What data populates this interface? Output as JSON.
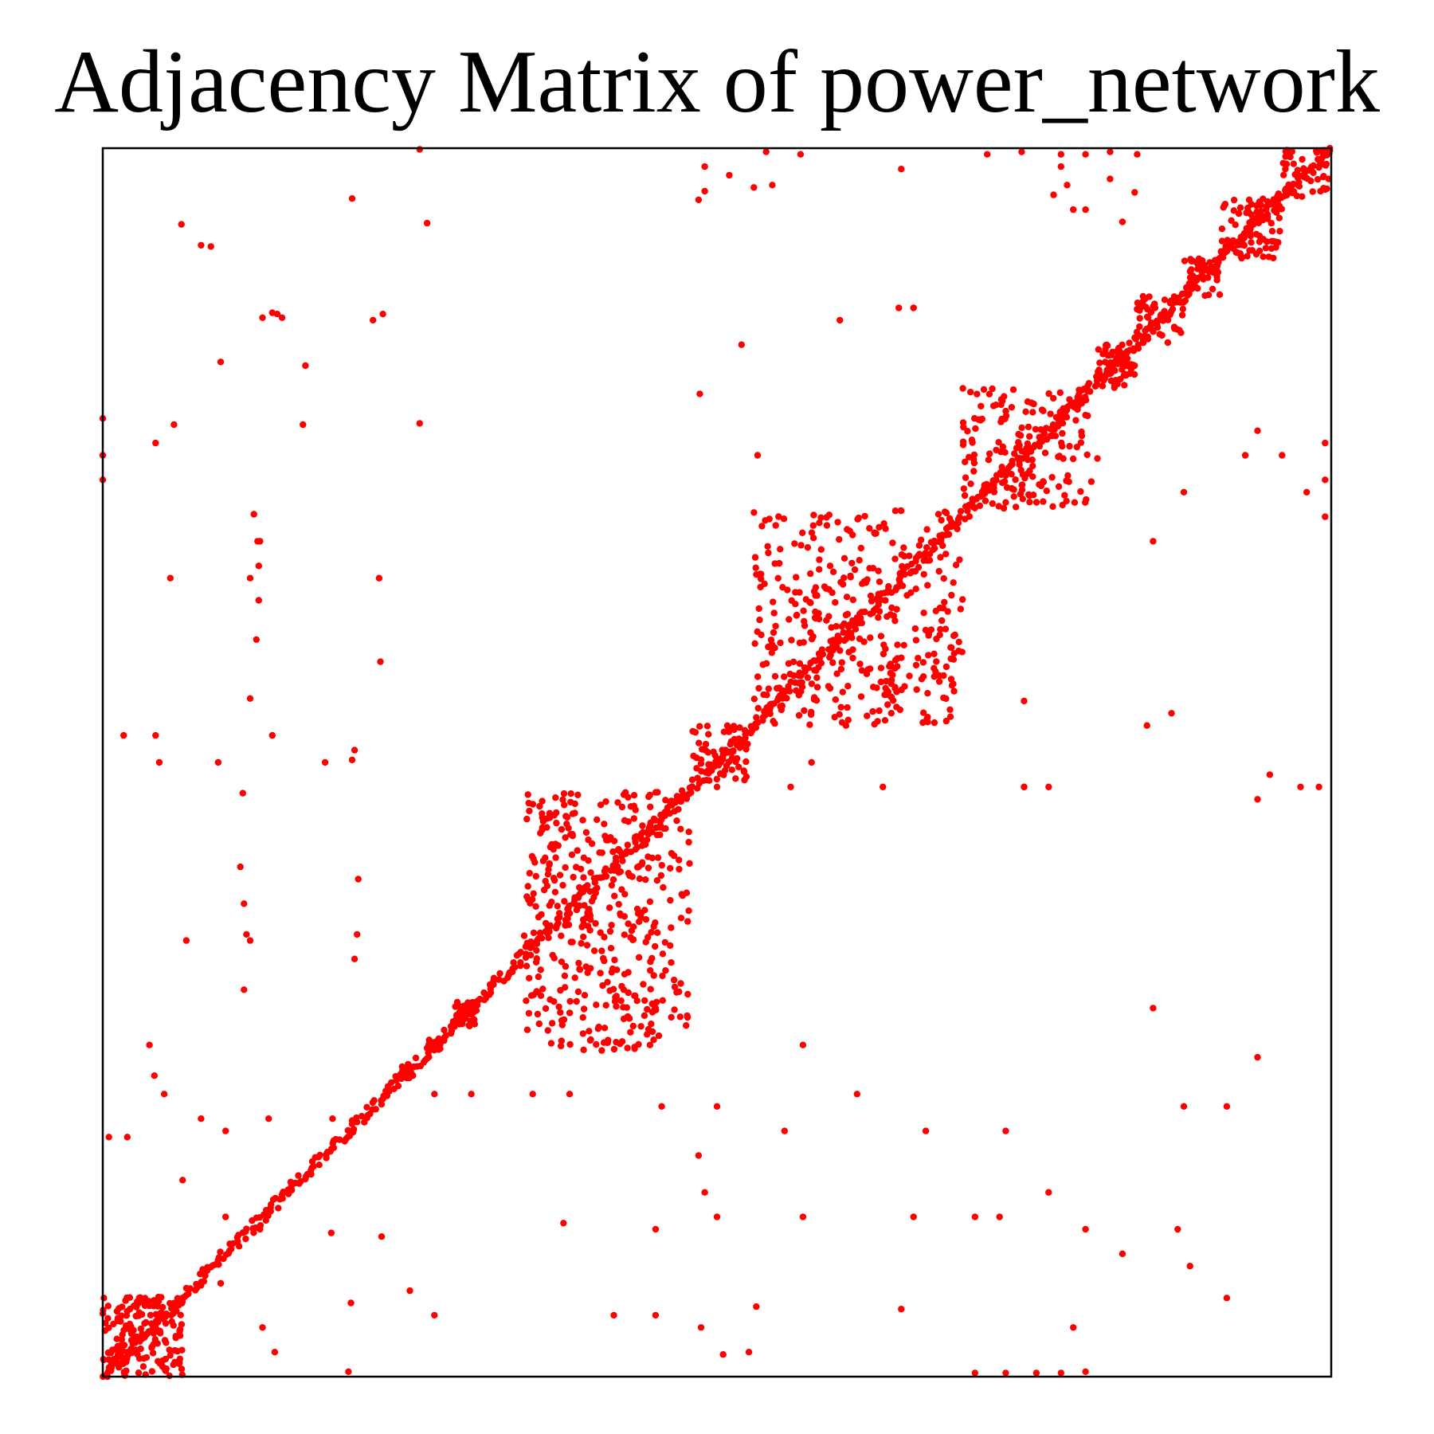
{
  "chart_data": {
    "type": "scatter",
    "title": "Adjacency Matrix of power_network",
    "xlabel": "",
    "ylabel": "",
    "axes_ticks": false,
    "grid": false,
    "legend": "none",
    "marker_color": "#ff0000",
    "axis_color": "#000000",
    "xlim": [
      0,
      1
    ],
    "ylim": [
      0,
      1
    ],
    "series": [
      {
        "blocks": [
          {
            "x": [
              0.0,
              0.065
            ],
            "y": [
              0.0,
              0.065
            ],
            "count": 160
          },
          {
            "x": [
              0.243,
              0.253
            ],
            "y": [
              0.243,
              0.253
            ],
            "count": 30
          },
          {
            "x": [
              0.265,
              0.275
            ],
            "y": [
              0.265,
              0.275
            ],
            "count": 25
          },
          {
            "x": [
              0.285,
              0.305
            ],
            "y": [
              0.285,
              0.305
            ],
            "count": 35
          },
          {
            "x": [
              0.343,
              0.478
            ],
            "y": [
              0.265,
              0.476
            ],
            "count": 420
          },
          {
            "x": [
              0.48,
              0.525
            ],
            "y": [
              0.485,
              0.53
            ],
            "count": 60
          },
          {
            "x": [
              0.53,
              0.7
            ],
            "y": [
              0.53,
              0.705
            ],
            "count": 380
          },
          {
            "x": [
              0.7,
              0.81
            ],
            "y": [
              0.705,
              0.805
            ],
            "count": 180
          },
          {
            "x": [
              0.81,
              0.84
            ],
            "y": [
              0.805,
              0.84
            ],
            "count": 60
          },
          {
            "x": [
              0.84,
              0.88
            ],
            "y": [
              0.84,
              0.88
            ],
            "count": 50
          },
          {
            "x": [
              0.88,
              0.91
            ],
            "y": [
              0.88,
              0.91
            ],
            "count": 40
          },
          {
            "x": [
              0.91,
              0.96
            ],
            "y": [
              0.91,
              0.96
            ],
            "count": 80
          },
          {
            "x": [
              0.96,
              1.0
            ],
            "y": [
              0.96,
              1.0
            ],
            "count": 45
          }
        ],
        "offdiag": [
          [
            0.258,
            0.999
          ],
          [
            0.203,
            0.959
          ],
          [
            0.264,
            0.939
          ],
          [
            0.064,
            0.938
          ],
          [
            0.08,
            0.921
          ],
          [
            0.088,
            0.92
          ],
          [
            0.13,
            0.862
          ],
          [
            0.138,
            0.866
          ],
          [
            0.22,
            0.86
          ],
          [
            0.228,
            0.865
          ],
          [
            0.146,
            0.862
          ],
          [
            0.142,
            0.865
          ],
          [
            0.096,
            0.826
          ],
          [
            0.165,
            0.823
          ],
          [
            0.058,
            0.775
          ],
          [
            0.163,
            0.775
          ],
          [
            0.258,
            0.776
          ],
          [
            0.0,
            0.73
          ],
          [
            0.0,
            0.75
          ],
          [
            0.0,
            0.78
          ],
          [
            0.043,
            0.76
          ],
          [
            0.128,
            0.68
          ],
          [
            0.055,
            0.65
          ],
          [
            0.225,
            0.65
          ],
          [
            0.226,
            0.582
          ],
          [
            0.123,
            0.702
          ],
          [
            0.126,
            0.68
          ],
          [
            0.127,
            0.66
          ],
          [
            0.12,
            0.65
          ],
          [
            0.127,
            0.632
          ],
          [
            0.125,
            0.6
          ],
          [
            0.12,
            0.552
          ],
          [
            0.138,
            0.522
          ],
          [
            0.043,
            0.522
          ],
          [
            0.017,
            0.522
          ],
          [
            0.046,
            0.5
          ],
          [
            0.094,
            0.5
          ],
          [
            0.181,
            0.5
          ],
          [
            0.205,
            0.51
          ],
          [
            0.203,
            0.502
          ],
          [
            0.114,
            0.475
          ],
          [
            0.112,
            0.415
          ],
          [
            0.115,
            0.385
          ],
          [
            0.117,
            0.36
          ],
          [
            0.12,
            0.355
          ],
          [
            0.115,
            0.315
          ],
          [
            0.208,
            0.405
          ],
          [
            0.207,
            0.36
          ],
          [
            0.205,
            0.34
          ],
          [
            0.068,
            0.355
          ],
          [
            0.038,
            0.27
          ],
          [
            0.042,
            0.245
          ],
          [
            0.05,
            0.23
          ],
          [
            0.02,
            0.195
          ],
          [
            0.005,
            0.195
          ],
          [
            0.08,
            0.21
          ],
          [
            0.065,
            0.16
          ],
          [
            0.1,
            0.2
          ],
          [
            0.135,
            0.21
          ],
          [
            0.187,
            0.21
          ],
          [
            0.1,
            0.13
          ],
          [
            0.128,
            0.12
          ],
          [
            0.096,
            0.076
          ],
          [
            0.186,
            0.117
          ],
          [
            0.227,
            0.114
          ],
          [
            0.25,
            0.07
          ],
          [
            0.27,
            0.05
          ],
          [
            0.202,
            0.06
          ],
          [
            0.13,
            0.04
          ],
          [
            0.14,
            0.02
          ],
          [
            0.2,
            0.004
          ],
          [
            0.49,
            0.965
          ],
          [
            0.53,
            0.968
          ],
          [
            0.545,
            0.97
          ],
          [
            0.485,
            0.958
          ],
          [
            0.49,
            0.985
          ],
          [
            0.51,
            0.978
          ],
          [
            0.65,
            0.983
          ],
          [
            0.78,
            0.985
          ],
          [
            0.82,
            0.975
          ],
          [
            0.84,
            0.964
          ],
          [
            0.774,
            0.962
          ],
          [
            0.66,
            0.87
          ],
          [
            0.648,
            0.87
          ],
          [
            0.6,
            0.86
          ],
          [
            0.52,
            0.84
          ],
          [
            0.486,
            0.8
          ],
          [
            0.533,
            0.75
          ],
          [
            0.5,
            0.48
          ],
          [
            0.56,
            0.48
          ],
          [
            0.635,
            0.48
          ],
          [
            0.75,
            0.48
          ],
          [
            0.75,
            0.55
          ],
          [
            0.75,
            0.48
          ],
          [
            0.77,
            0.48
          ],
          [
            0.85,
            0.53
          ],
          [
            0.87,
            0.54
          ],
          [
            0.855,
            0.68
          ],
          [
            0.88,
            0.72
          ],
          [
            0.93,
            0.75
          ],
          [
            0.94,
            0.77
          ],
          [
            0.96,
            0.75
          ],
          [
            0.98,
            0.72
          ],
          [
            0.995,
            0.76
          ],
          [
            0.995,
            0.73
          ],
          [
            0.995,
            0.7
          ],
          [
            0.94,
            0.47
          ],
          [
            0.95,
            0.49
          ],
          [
            0.975,
            0.48
          ],
          [
            0.99,
            0.48
          ],
          [
            0.94,
            0.26
          ],
          [
            0.915,
            0.22
          ],
          [
            0.88,
            0.22
          ],
          [
            0.855,
            0.3
          ],
          [
            0.875,
            0.12
          ],
          [
            0.83,
            0.1
          ],
          [
            0.8,
            0.12
          ],
          [
            0.77,
            0.15
          ],
          [
            0.735,
            0.2
          ],
          [
            0.67,
            0.2
          ],
          [
            0.555,
            0.2
          ],
          [
            0.5,
            0.22
          ],
          [
            0.455,
            0.22
          ],
          [
            0.38,
            0.23
          ],
          [
            0.35,
            0.23
          ],
          [
            0.3,
            0.23
          ],
          [
            0.27,
            0.23
          ],
          [
            0.375,
            0.125
          ],
          [
            0.5,
            0.13
          ],
          [
            0.485,
            0.18
          ],
          [
            0.49,
            0.15
          ],
          [
            0.45,
            0.12
          ],
          [
            0.416,
            0.05
          ],
          [
            0.45,
            0.05
          ],
          [
            0.487,
            0.04
          ],
          [
            0.526,
            0.02
          ],
          [
            0.532,
            0.057
          ],
          [
            0.65,
            0.055
          ],
          [
            0.79,
            0.04
          ],
          [
            0.915,
            0.064
          ],
          [
            0.885,
            0.09
          ],
          [
            0.73,
            0.13
          ],
          [
            0.71,
            0.13
          ],
          [
            0.66,
            0.13
          ],
          [
            0.57,
            0.13
          ],
          [
            0.505,
            0.018
          ],
          [
            0.71,
            0.003
          ],
          [
            0.735,
            0.003
          ],
          [
            0.76,
            0.003
          ],
          [
            0.78,
            0.003
          ],
          [
            0.8,
            0.004
          ],
          [
            0.54,
            0.997
          ],
          [
            0.568,
            0.995
          ],
          [
            0.72,
            0.995
          ],
          [
            0.748,
            0.997
          ],
          [
            0.78,
            0.995
          ],
          [
            0.8,
            0.995
          ],
          [
            0.82,
            0.997
          ],
          [
            0.842,
            0.995
          ],
          [
            0.785,
            0.97
          ],
          [
            0.79,
            0.95
          ],
          [
            0.8,
            0.95
          ],
          [
            0.83,
            0.94
          ],
          [
            0.565,
            0.62
          ],
          [
            0.605,
            0.53
          ],
          [
            0.577,
            0.5
          ],
          [
            0.57,
            0.27
          ],
          [
            0.614,
            0.23
          ],
          [
            0.45,
            0.3
          ],
          [
            0.605,
            0.62
          ]
        ]
      }
    ]
  }
}
